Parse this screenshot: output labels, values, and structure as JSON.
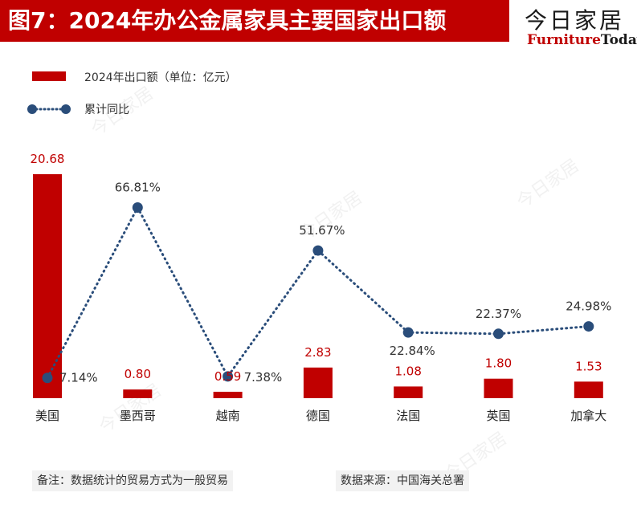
{
  "title": "图7：2024年办公金属家具主要国家出口额",
  "logo": {
    "cn": "今日家居",
    "en_part1": "Furniture",
    "en_part2": "Today"
  },
  "colors": {
    "bar": "#c00000",
    "line": "#2a4d7a",
    "title_bg": "#c00000"
  },
  "legend": {
    "bar_label": "2024年出口额（单位：亿元）",
    "line_label": "累计同比"
  },
  "footnote_left": "备注：数据统计的贸易方式为一般贸易",
  "footnote_right": "数据来源：中国海关总署",
  "chart_data": {
    "type": "bar",
    "categories": [
      "美国",
      "墨西哥",
      "越南",
      "德国",
      "法国",
      "英国",
      "加拿大"
    ],
    "series": [
      {
        "name": "2024年出口额（单位：亿元）",
        "type": "bar",
        "values": [
          20.68,
          0.8,
          0.59,
          2.83,
          1.08,
          1.8,
          1.53
        ],
        "value_labels": [
          "20.68",
          "0.80",
          "0.59",
          "2.83",
          "1.08",
          "1.80",
          "1.53"
        ]
      },
      {
        "name": "累计同比",
        "type": "line",
        "values": [
          7.14,
          66.81,
          7.38,
          51.67,
          22.84,
          22.37,
          24.98
        ],
        "value_labels": [
          "7.14%",
          "66.81%",
          "7.38%",
          "51.67%",
          "22.84%",
          "22.37%",
          "24.98%"
        ]
      }
    ],
    "legend_position": "top-left",
    "grid": false
  }
}
